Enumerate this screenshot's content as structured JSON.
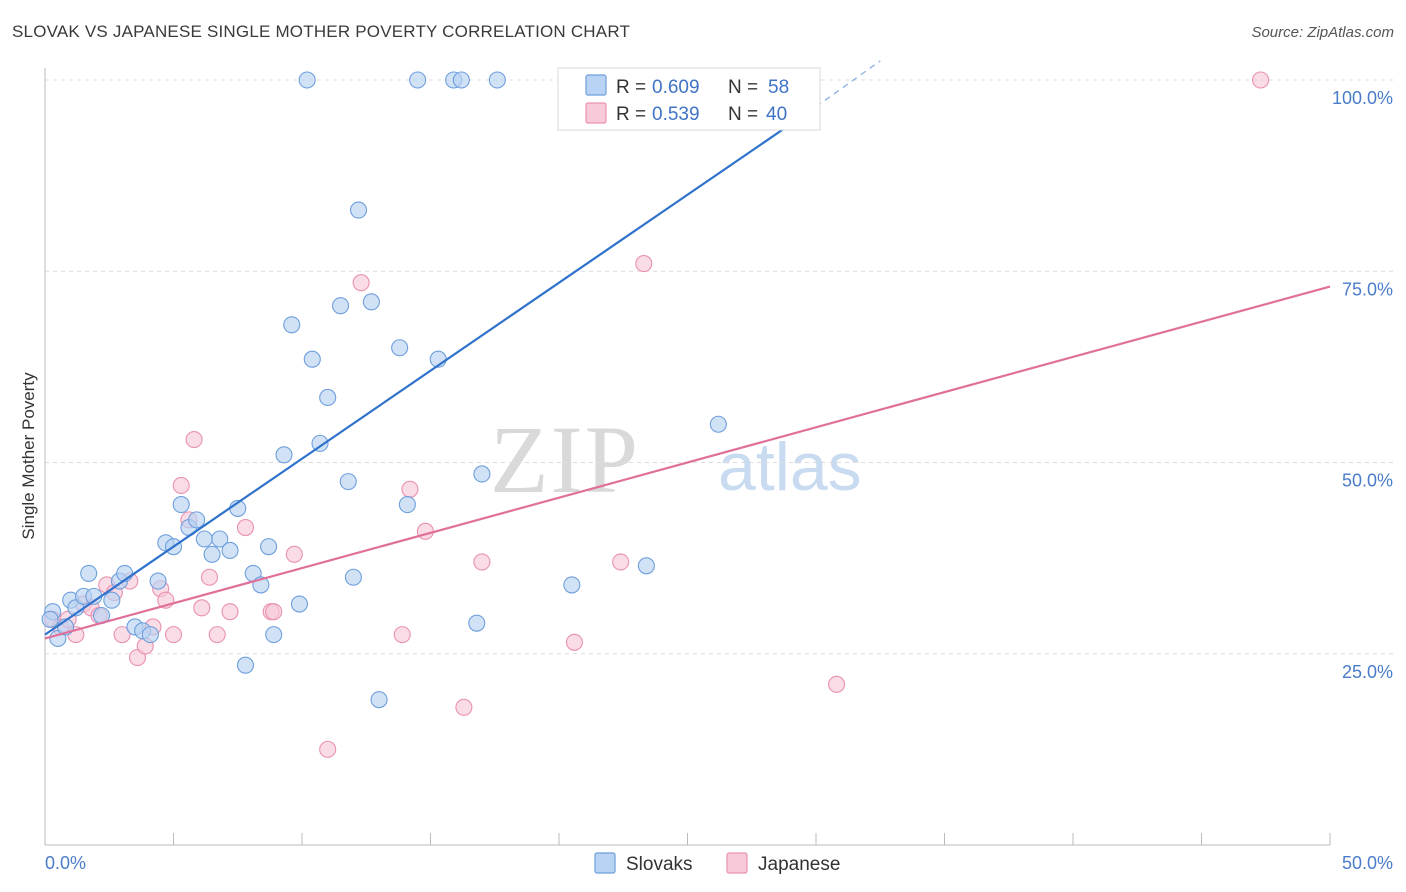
{
  "header": {
    "title": "SLOVAK VS JAPANESE SINGLE MOTHER POVERTY CORRELATION CHART",
    "source": "Source: ZipAtlas.com"
  },
  "watermark": {
    "zip": "ZIP",
    "atlas": "atlas"
  },
  "colors": {
    "blue_fill": "#b8d3f3",
    "blue_stroke": "#6e9fdc",
    "blue_line": "#2f72cc",
    "pink_fill": "#f8c9d8",
    "pink_stroke": "#e991b0",
    "pink_line": "#e07099",
    "tick_text": "#4a7cc9",
    "grid": "#dcdcdc"
  },
  "chart_data": {
    "type": "scatter",
    "title": "SLOVAK VS JAPANESE SINGLE MOTHER POVERTY CORRELATION CHART",
    "xlabel": "",
    "ylabel": "Single Mother Poverty",
    "xlim": [
      0,
      50
    ],
    "ylim": [
      0,
      100
    ],
    "x_tick_labels": [
      "0.0%",
      "50.0%"
    ],
    "y_ticks": [
      25,
      50,
      75,
      100
    ],
    "y_tick_labels": [
      "25.0%",
      "50.0%",
      "75.0%",
      "100.0%"
    ],
    "grid": true,
    "legend_position": "top-center",
    "legend": [
      {
        "name": "Slovaks",
        "r_label": "R = ",
        "r_value": "0.609",
        "n_label": "N = ",
        "n_value": "58"
      },
      {
        "name": "Japanese",
        "r_label": "R = ",
        "r_value": "0.539",
        "n_label": "N = ",
        "n_value": "40"
      }
    ],
    "series": [
      {
        "name": "Slovaks",
        "trend": {
          "x0": 0,
          "y0": 27.5,
          "x1": 30.0,
          "y1": 96.5,
          "dash_to_x": 32.5,
          "dash_to_y": 102.5
        },
        "points": [
          [
            0.3,
            30.5
          ],
          [
            0.5,
            27.0
          ],
          [
            0.8,
            28.5
          ],
          [
            1.0,
            32.0
          ],
          [
            1.2,
            31.0
          ],
          [
            1.5,
            32.5
          ],
          [
            1.7,
            35.5
          ],
          [
            1.9,
            32.5
          ],
          [
            2.2,
            30.0
          ],
          [
            2.6,
            32.0
          ],
          [
            2.9,
            34.5
          ],
          [
            3.1,
            35.5
          ],
          [
            3.5,
            28.5
          ],
          [
            3.8,
            28.0
          ],
          [
            4.1,
            27.5
          ],
          [
            4.4,
            34.5
          ],
          [
            4.7,
            39.5
          ],
          [
            5.0,
            39.0
          ],
          [
            5.3,
            44.5
          ],
          [
            5.6,
            41.5
          ],
          [
            5.9,
            42.5
          ],
          [
            6.2,
            40.0
          ],
          [
            6.5,
            38.0
          ],
          [
            6.8,
            40.0
          ],
          [
            7.2,
            38.5
          ],
          [
            7.5,
            44.0
          ],
          [
            7.8,
            23.5
          ],
          [
            8.1,
            35.5
          ],
          [
            8.4,
            34.0
          ],
          [
            8.7,
            39.0
          ],
          [
            8.9,
            27.5
          ],
          [
            9.3,
            51.0
          ],
          [
            9.6,
            68.0
          ],
          [
            9.9,
            31.5
          ],
          [
            10.2,
            100.0
          ],
          [
            10.4,
            63.5
          ],
          [
            10.7,
            52.5
          ],
          [
            11.0,
            58.5
          ],
          [
            11.5,
            70.5
          ],
          [
            11.8,
            47.5
          ],
          [
            12.0,
            35.0
          ],
          [
            12.2,
            83.0
          ],
          [
            12.7,
            71.0
          ],
          [
            13.0,
            19.0
          ],
          [
            13.8,
            65.0
          ],
          [
            14.1,
            44.5
          ],
          [
            14.5,
            100.0
          ],
          [
            15.3,
            63.5
          ],
          [
            15.9,
            100.0
          ],
          [
            16.2,
            100.0
          ],
          [
            16.8,
            29.0
          ],
          [
            17.0,
            48.5
          ],
          [
            17.6,
            100.0
          ],
          [
            20.5,
            34.0
          ],
          [
            21.7,
            100.0
          ],
          [
            23.4,
            36.5
          ],
          [
            26.2,
            55.0
          ],
          [
            0.2,
            29.5
          ]
        ]
      },
      {
        "name": "Japanese",
        "trend": {
          "x0": 0,
          "y0": 27.0,
          "x1": 50,
          "y1": 73.0
        },
        "points": [
          [
            0.3,
            29.5
          ],
          [
            0.6,
            28.5
          ],
          [
            0.9,
            29.5
          ],
          [
            1.2,
            27.5
          ],
          [
            1.5,
            31.5
          ],
          [
            1.8,
            31.0
          ],
          [
            2.1,
            30.0
          ],
          [
            2.4,
            34.0
          ],
          [
            2.7,
            33.0
          ],
          [
            3.0,
            27.5
          ],
          [
            3.3,
            34.5
          ],
          [
            3.6,
            24.5
          ],
          [
            3.9,
            26.0
          ],
          [
            4.2,
            28.5
          ],
          [
            4.5,
            33.5
          ],
          [
            4.7,
            32.0
          ],
          [
            5.0,
            27.5
          ],
          [
            5.3,
            47.0
          ],
          [
            5.6,
            42.5
          ],
          [
            5.8,
            53.0
          ],
          [
            6.1,
            31.0
          ],
          [
            6.4,
            35.0
          ],
          [
            6.7,
            27.5
          ],
          [
            7.2,
            30.5
          ],
          [
            7.8,
            41.5
          ],
          [
            8.8,
            30.5
          ],
          [
            8.9,
            30.5
          ],
          [
            9.7,
            38.0
          ],
          [
            11.0,
            12.5
          ],
          [
            12.3,
            73.5
          ],
          [
            13.9,
            27.5
          ],
          [
            14.2,
            46.5
          ],
          [
            14.8,
            41.0
          ],
          [
            16.3,
            18.0
          ],
          [
            17.0,
            37.0
          ],
          [
            20.6,
            26.5
          ],
          [
            22.4,
            37.0
          ],
          [
            23.3,
            76.0
          ],
          [
            30.8,
            21.0
          ],
          [
            47.3,
            100.0
          ]
        ]
      }
    ]
  }
}
